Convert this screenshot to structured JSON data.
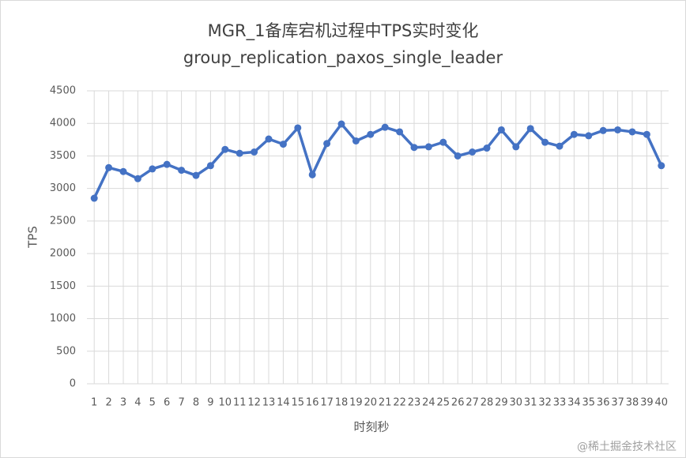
{
  "chart_data": {
    "type": "line",
    "title": "MGR_1备库宕机过程中TPS实时变化",
    "subtitle": "group_replication_paxos_single_leader",
    "x_label": "时刻秒",
    "y_label": "TPS",
    "categories": [
      "1",
      "2",
      "3",
      "4",
      "5",
      "6",
      "7",
      "8",
      "9",
      "10",
      "11",
      "12",
      "13",
      "14",
      "15",
      "16",
      "17",
      "18",
      "19",
      "20",
      "21",
      "22",
      "23",
      "24",
      "25",
      "26",
      "27",
      "28",
      "29",
      "30",
      "31",
      "32",
      "33",
      "34",
      "35",
      "36",
      "37",
      "38",
      "39",
      "40"
    ],
    "series": [
      {
        "name": "TPS",
        "color": "#4472c4",
        "values": [
          2850,
          3320,
          3260,
          3150,
          3300,
          3370,
          3280,
          3200,
          3350,
          3600,
          3540,
          3560,
          3760,
          3680,
          3930,
          3210,
          3690,
          3990,
          3730,
          3830,
          3940,
          3870,
          3630,
          3640,
          3710,
          3500,
          3560,
          3620,
          3900,
          3640,
          3920,
          3710,
          3650,
          3830,
          3810,
          3890,
          3900,
          3870,
          3830,
          3350
        ]
      }
    ],
    "ylim": [
      0,
      4500
    ],
    "yticks": [
      0,
      500,
      1000,
      1500,
      2000,
      2500,
      3000,
      3500,
      4000,
      4500
    ],
    "grid": true,
    "watermark": "@稀土掘金技术社区"
  }
}
